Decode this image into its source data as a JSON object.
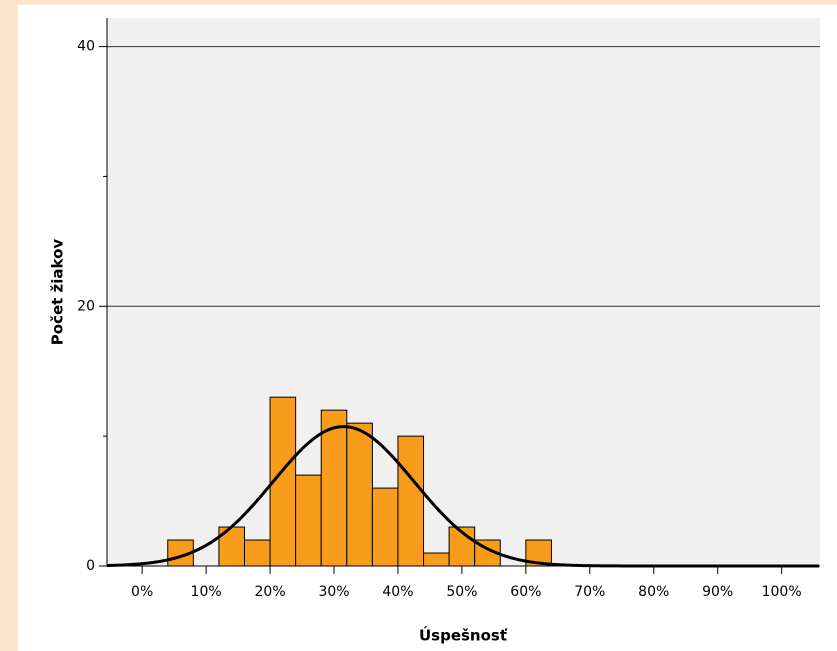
{
  "chart_data": {
    "type": "histogram",
    "x_label": "Úspešnosť",
    "y_label": "Počet žiakov",
    "bins": [
      4,
      8,
      12,
      16,
      20,
      24,
      28,
      32,
      36,
      40,
      44,
      48,
      52,
      56,
      60,
      64
    ],
    "values": [
      2,
      0,
      3,
      2,
      13,
      7,
      12,
      11,
      6,
      10,
      1,
      3,
      2,
      0,
      2
    ],
    "color": "#f89c1c",
    "normal_curve": {
      "mean": 31.5,
      "sd": 11,
      "color": "#000000"
    },
    "xlim": [
      -5.5,
      106
    ],
    "xticks": [
      {
        "value": 0,
        "label": "0%"
      },
      {
        "value": 10,
        "label": "10%"
      },
      {
        "value": 20,
        "label": "20%"
      },
      {
        "value": 30,
        "label": "30%"
      },
      {
        "value": 40,
        "label": "40%"
      },
      {
        "value": 50,
        "label": "50%"
      },
      {
        "value": 60,
        "label": "60%"
      },
      {
        "value": 70,
        "label": "70%"
      },
      {
        "value": 80,
        "label": "80%"
      },
      {
        "value": 90,
        "label": "90%"
      },
      {
        "value": 100,
        "label": "100%"
      }
    ],
    "ylim": [
      0,
      42.2
    ],
    "yticks": [
      0,
      20,
      40
    ],
    "y_minor_ticks": [
      10,
      30
    ],
    "grid": true
  }
}
